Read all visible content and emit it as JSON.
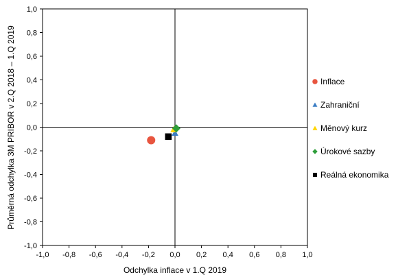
{
  "chart_data": {
    "type": "scatter",
    "xlabel": "Odchylka inflace v 1.Q 2019",
    "ylabel": "Průměrná odchylka 3M PRIBOR v 2.Q 2018 – 1.Q 2019",
    "xlim": [
      -1.0,
      1.0
    ],
    "ylim": [
      -1.0,
      1.0
    ],
    "x_ticks": [
      "-1,0",
      "-0,8",
      "-0,6",
      "-0,4",
      "-0,2",
      "0,0",
      "0,2",
      "0,4",
      "0,6",
      "0,8",
      "1,0"
    ],
    "y_ticks": [
      "1,0",
      "0,8",
      "0,6",
      "0,4",
      "0,2",
      "0,0",
      "-0,2",
      "-0,4",
      "-0,6",
      "-0,8",
      "-1,0"
    ],
    "grid": false,
    "legend_position": "right",
    "series": [
      {
        "name": "Inflace",
        "marker": "circle",
        "color": "#e8553f",
        "x": -0.18,
        "y": -0.11
      },
      {
        "name": "Zahraniční",
        "marker": "triangle",
        "color": "#3a7dc4",
        "x": 0.0,
        "y": -0.05
      },
      {
        "name": "Měnový kurz",
        "marker": "triangle",
        "color": "#ffd500",
        "x": -0.01,
        "y": -0.02
      },
      {
        "name": "Úrokové sazby",
        "marker": "diamond",
        "color": "#2e9e3a",
        "x": 0.01,
        "y": -0.01
      },
      {
        "name": "Reálná ekonomika",
        "marker": "square",
        "color": "#000000",
        "x": -0.05,
        "y": -0.08
      }
    ]
  }
}
